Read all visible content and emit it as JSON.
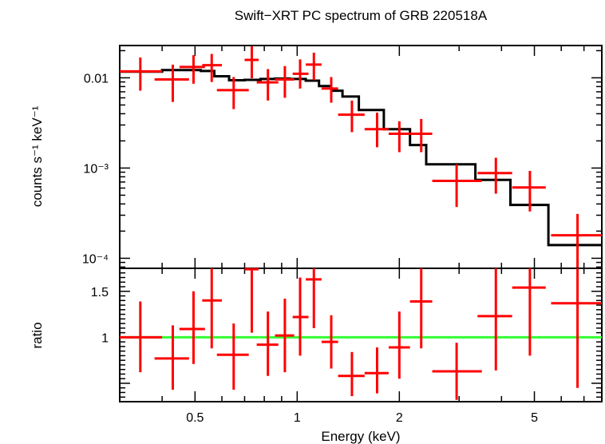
{
  "chart_data": [
    {
      "type": "scatter",
      "panel": "spectrum",
      "title": "Swift−XRT PC spectrum of GRB 220518A",
      "xlabel": "",
      "ylabel": "counts s⁻¹ keV⁻¹",
      "xscale": "log",
      "yscale": "log",
      "xlim": [
        0.3,
        7.9
      ],
      "ylim": [
        7.74e-05,
        0.0228
      ],
      "y_tick_labels": [
        "0.01",
        "10⁻³",
        "10⁻⁴"
      ],
      "y_ticks": [
        0.01,
        0.001,
        0.0001
      ],
      "grid": false,
      "series": [
        {
          "kind": "data-with-errors",
          "color": "#ff0000",
          "points": [
            {
              "x": 0.345,
              "xlo": 0.3,
              "xhi": 0.4,
              "y": 0.0118,
              "ylo": 0.0072,
              "yhi": 0.0168
            },
            {
              "x": 0.43,
              "xlo": 0.38,
              "xhi": 0.48,
              "y": 0.0096,
              "ylo": 0.0054,
              "yhi": 0.014
            },
            {
              "x": 0.495,
              "xlo": 0.45,
              "xhi": 0.535,
              "y": 0.0132,
              "ylo": 0.0086,
              "yhi": 0.0178
            },
            {
              "x": 0.56,
              "xlo": 0.525,
              "xhi": 0.6,
              "y": 0.0138,
              "ylo": 0.009,
              "yhi": 0.0184
            },
            {
              "x": 0.65,
              "xlo": 0.58,
              "xhi": 0.72,
              "y": 0.0073,
              "ylo": 0.0045,
              "yhi": 0.0102
            },
            {
              "x": 0.735,
              "xlo": 0.7,
              "xhi": 0.77,
              "y": 0.0158,
              "ylo": 0.0099,
              "yhi": 0.0225
            },
            {
              "x": 0.82,
              "xlo": 0.76,
              "xhi": 0.88,
              "y": 0.0089,
              "ylo": 0.0056,
              "yhi": 0.0125
            },
            {
              "x": 0.92,
              "xlo": 0.86,
              "xhi": 0.98,
              "y": 0.0096,
              "ylo": 0.006,
              "yhi": 0.0135
            },
            {
              "x": 1.02,
              "xlo": 0.97,
              "xhi": 1.08,
              "y": 0.0111,
              "ylo": 0.0076,
              "yhi": 0.016
            },
            {
              "x": 1.12,
              "xlo": 1.06,
              "xhi": 1.18,
              "y": 0.014,
              "ylo": 0.0094,
              "yhi": 0.019
            },
            {
              "x": 1.26,
              "xlo": 1.18,
              "xhi": 1.32,
              "y": 0.0076,
              "ylo": 0.0053,
              "yhi": 0.0102
            },
            {
              "x": 1.45,
              "xlo": 1.32,
              "xhi": 1.58,
              "y": 0.0039,
              "ylo": 0.0025,
              "yhi": 0.0056
            },
            {
              "x": 1.72,
              "xlo": 1.58,
              "xhi": 1.86,
              "y": 0.0027,
              "ylo": 0.0017,
              "yhi": 0.0041
            },
            {
              "x": 2.0,
              "xlo": 1.86,
              "xhi": 2.15,
              "y": 0.0024,
              "ylo": 0.0015,
              "yhi": 0.0033
            },
            {
              "x": 2.32,
              "xlo": 2.15,
              "xhi": 2.5,
              "y": 0.0024,
              "ylo": 0.0015,
              "yhi": 0.0035
            },
            {
              "x": 2.95,
              "xlo": 2.5,
              "xhi": 3.5,
              "y": 0.00072,
              "ylo": 0.00037,
              "yhi": 0.0011
            },
            {
              "x": 3.85,
              "xlo": 3.4,
              "xhi": 4.3,
              "y": 0.00088,
              "ylo": 0.00052,
              "yhi": 0.0013
            },
            {
              "x": 4.85,
              "xlo": 4.3,
              "xhi": 5.4,
              "y": 0.00061,
              "ylo": 0.00033,
              "yhi": 0.00093
            },
            {
              "x": 6.7,
              "xlo": 5.6,
              "xhi": 7.9,
              "y": 0.00018,
              "ylo": 7.74e-05,
              "yhi": 0.00031
            }
          ]
        },
        {
          "kind": "model-step",
          "color": "#000000",
          "edges": [
            0.3,
            0.4,
            0.52,
            0.57,
            0.63,
            0.7,
            0.78,
            0.86,
            0.95,
            1.06,
            1.16,
            1.26,
            1.36,
            1.52,
            1.8,
            2.15,
            2.4,
            3.35,
            4.25,
            5.5,
            7.9
          ],
          "values": [
            0.0117,
            0.0122,
            0.0119,
            0.0104,
            0.0094,
            0.0095,
            0.0097,
            0.0098,
            0.0097,
            0.0093,
            0.0081,
            0.0072,
            0.0062,
            0.0044,
            0.0027,
            0.0018,
            0.0011,
            0.00074,
            0.00039,
            0.00014
          ]
        }
      ]
    },
    {
      "type": "scatter",
      "panel": "ratio",
      "xlabel": "Energy (keV)",
      "ylabel": "ratio",
      "xscale": "log",
      "xlim": [
        0.3,
        7.9
      ],
      "ylim": [
        0.3,
        1.75
      ],
      "x_ticks": [
        0.5,
        1,
        2,
        5
      ],
      "x_tick_labels": [
        "0.5",
        "1",
        "2",
        "5"
      ],
      "y_ticks": [
        1,
        1.5
      ],
      "y_tick_labels": [
        "1",
        "1.5"
      ],
      "grid": false,
      "reference_line": {
        "y": 1,
        "color": "#33ff33"
      },
      "series": [
        {
          "kind": "data-with-errors",
          "color": "#ff0000",
          "points": [
            {
              "x": 0.345,
              "xlo": 0.3,
              "xhi": 0.4,
              "y": 1.0,
              "ylo": 0.62,
              "yhi": 1.39
            },
            {
              "x": 0.43,
              "xlo": 0.38,
              "xhi": 0.48,
              "y": 0.77,
              "ylo": 0.43,
              "yhi": 1.13
            },
            {
              "x": 0.495,
              "xlo": 0.45,
              "xhi": 0.535,
              "y": 1.09,
              "ylo": 0.71,
              "yhi": 1.5
            },
            {
              "x": 0.56,
              "xlo": 0.525,
              "xhi": 0.6,
              "y": 1.4,
              "ylo": 0.88,
              "yhi": 1.75
            },
            {
              "x": 0.65,
              "xlo": 0.58,
              "xhi": 0.72,
              "y": 0.81,
              "ylo": 0.43,
              "yhi": 1.15
            },
            {
              "x": 0.735,
              "xlo": 0.7,
              "xhi": 0.77,
              "y": 1.74,
              "ylo": 1.05,
              "yhi": 1.75
            },
            {
              "x": 0.82,
              "xlo": 0.76,
              "xhi": 0.88,
              "y": 0.92,
              "ylo": 0.58,
              "yhi": 1.28
            },
            {
              "x": 0.92,
              "xlo": 0.86,
              "xhi": 0.98,
              "y": 1.02,
              "ylo": 0.62,
              "yhi": 1.42
            },
            {
              "x": 1.02,
              "xlo": 0.97,
              "xhi": 1.08,
              "y": 1.22,
              "ylo": 0.8,
              "yhi": 1.65
            },
            {
              "x": 1.12,
              "xlo": 1.06,
              "xhi": 1.18,
              "y": 1.63,
              "ylo": 1.1,
              "yhi": 1.75
            },
            {
              "x": 1.26,
              "xlo": 1.18,
              "xhi": 1.32,
              "y": 0.95,
              "ylo": 0.66,
              "yhi": 1.24
            },
            {
              "x": 1.45,
              "xlo": 1.32,
              "xhi": 1.58,
              "y": 0.58,
              "ylo": 0.36,
              "yhi": 0.84
            },
            {
              "x": 1.72,
              "xlo": 1.58,
              "xhi": 1.86,
              "y": 0.61,
              "ylo": 0.39,
              "yhi": 0.89
            },
            {
              "x": 2.0,
              "xlo": 1.86,
              "xhi": 2.15,
              "y": 0.89,
              "ylo": 0.55,
              "yhi": 1.28
            },
            {
              "x": 2.32,
              "xlo": 2.15,
              "xhi": 2.5,
              "y": 1.39,
              "ylo": 0.88,
              "yhi": 1.75
            },
            {
              "x": 2.95,
              "xlo": 2.5,
              "xhi": 3.5,
              "y": 0.63,
              "ylo": 0.32,
              "yhi": 0.94
            },
            {
              "x": 3.85,
              "xlo": 3.4,
              "xhi": 4.3,
              "y": 1.23,
              "ylo": 0.64,
              "yhi": 1.75
            },
            {
              "x": 4.85,
              "xlo": 4.3,
              "xhi": 5.4,
              "y": 1.54,
              "ylo": 0.8,
              "yhi": 1.75
            },
            {
              "x": 6.7,
              "xlo": 5.6,
              "xhi": 7.9,
              "y": 1.37,
              "ylo": 0.45,
              "yhi": 1.75
            }
          ]
        }
      ]
    }
  ]
}
